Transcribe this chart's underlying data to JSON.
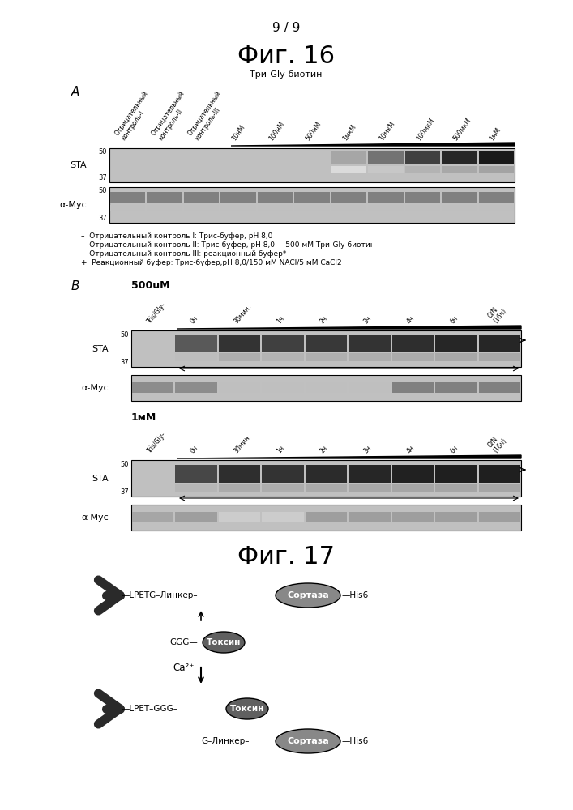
{
  "page_number": "9 / 9",
  "fig16_title": "Фиг. 16",
  "fig17_title": "Фиг. 17",
  "subtitle_fig16": "Три-Gly-биотин",
  "panel_A_label": "A",
  "panel_B_label": "B",
  "panel_A_col_labels": [
    "Отрицательный\nконтроль-I",
    "Отрицательный\nконтроль-II",
    "Отрицательный\nконтроль-III",
    "10нМ",
    "100нМ",
    "500нМ",
    "1мкМ",
    "10мкМ",
    "100мкМ",
    "500мкМ",
    "1мМ"
  ],
  "panel_B_500uM_label": "500uM",
  "panel_B_1mM_label": "1мМ",
  "panel_B_time_labels": [
    "Tris/Gly-",
    "0ч",
    "30мин.",
    "1ч",
    "2ч",
    "3ч",
    "4ч",
    "6ч",
    "O/N\n(16ч)"
  ],
  "STA_label": "STA",
  "alpha_myc_label": "α-Myc",
  "footnotes": [
    "–  Отрицательный контроль I: Трис-буфер, pH 8,0",
    "–  Отрицательный контроль II: Трис-буфер, pH 8,0 + 500 мМ Три-Gly-биотин",
    "–  Отрицательный контроль III: реакционный буфер*",
    "+  Реакционный буфер: Трис-буфер,pH 8,0/150 мМ NACl/5 мМ CaCl2"
  ],
  "bg_color": "#ffffff",
  "text_color": "#000000"
}
